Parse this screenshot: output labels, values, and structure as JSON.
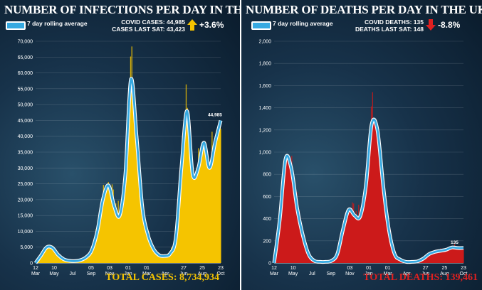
{
  "left": {
    "title": "NUMBER OF INFECTIONS PER DAY IN THE UK",
    "legend_label": "7 day rolling average",
    "stat_line1": "COVID CASES: 44,985",
    "stat_line2": "CASES LAST SAT: 43,423",
    "change": "+3.6%",
    "change_direction": "up",
    "total": "TOTAL CASES: 8,734,934",
    "end_label": "44,985"
  },
  "right": {
    "title": "NUMBER OF DEATHS PER DAY IN THE UK",
    "legend_label": "7 day rolling average",
    "stat_line1": "COVID DEATHS: 135",
    "stat_line2": "DEATHS LAST SAT: 148",
    "change": "-8.8%",
    "change_direction": "down",
    "total": "TOTAL DEATHS: 139,461",
    "end_label": "135"
  },
  "colors": {
    "cases_fill": "#f5c400",
    "deaths_fill": "#cc1a1a",
    "rolling_line": "#36a9e1",
    "rolling_outline": "#ffffff",
    "up_arrow": "#f5c400",
    "down_arrow": "#e02020",
    "cases_total_text": "#f5c400",
    "deaths_total_text": "#e02020"
  },
  "chart_data": [
    {
      "type": "area",
      "series": [
        {
          "values": [
            0,
            2500,
            5000,
            4800,
            2600,
            1200,
            700,
            600,
            900,
            1800,
            4000,
            10000,
            20000,
            24500,
            18000,
            15000,
            28000,
            58000,
            40000,
            18000,
            9000,
            4500,
            2500,
            2200,
            3000,
            8000,
            30000,
            48000,
            28000,
            30000,
            38000,
            30000,
            38000,
            44985
          ]
        },
        {
          "values": [
            0,
            2500,
            5000,
            4800,
            2600,
            1200,
            700,
            600,
            900,
            1800,
            4000,
            10000,
            20000,
            24500,
            18000,
            15000,
            28000,
            58000,
            40000,
            18000,
            9000,
            4500,
            2500,
            2200,
            3000,
            8000,
            30000,
            48000,
            28000,
            30000,
            38000,
            30000,
            38000,
            44985
          ]
        }
      ],
      "ylim": [
        0,
        70000
      ],
      "yticks": [
        "0",
        "5,000",
        "10,000",
        "15,000",
        "20,000",
        "25,000",
        "30,000",
        "35,000",
        "40,000",
        "45,000",
        "50,000",
        "55,000",
        "60,000",
        "65,000",
        "70,000"
      ],
      "xticks": [
        {
          "day": "12",
          "month": "Mar"
        },
        {
          "day": "10",
          "month": "May"
        },
        {
          "day": "",
          "month": "Jul"
        },
        {
          "day": "05",
          "month": "Sep"
        },
        {
          "day": "03",
          "month": "Nov"
        },
        {
          "day": "01",
          "month": "Jan"
        },
        {
          "day": "01",
          "month": "Mar"
        },
        {
          "day": "",
          "month": "Apr"
        },
        {
          "day": "27",
          "month": "Jun"
        },
        {
          "day": "25",
          "month": "Aug"
        },
        {
          "day": "23",
          "month": "Oct"
        }
      ]
    },
    {
      "type": "area",
      "series": [
        {
          "values": [
            0,
            400,
            940,
            850,
            500,
            250,
            80,
            20,
            10,
            10,
            20,
            80,
            300,
            480,
            430,
            420,
            700,
            1250,
            1200,
            700,
            300,
            80,
            30,
            10,
            10,
            15,
            40,
            80,
            100,
            110,
            120,
            140,
            135,
            135
          ]
        },
        {
          "values": [
            0,
            400,
            940,
            850,
            500,
            250,
            80,
            20,
            10,
            10,
            20,
            80,
            300,
            480,
            430,
            420,
            700,
            1250,
            1200,
            700,
            300,
            80,
            30,
            10,
            10,
            15,
            40,
            80,
            100,
            110,
            120,
            140,
            135,
            135
          ]
        }
      ],
      "ylim": [
        0,
        2000
      ],
      "yticks": [
        "0",
        "200",
        "400",
        "600",
        "800",
        "1,000",
        "1,200",
        "1,400",
        "1,600",
        "1,800",
        "2,000"
      ],
      "xticks": [
        {
          "day": "12",
          "month": "Mar"
        },
        {
          "day": "10",
          "month": "May"
        },
        {
          "day": "",
          "month": "Jul"
        },
        {
          "day": "",
          "month": "Sep"
        },
        {
          "day": "03",
          "month": "Nov"
        },
        {
          "day": "01",
          "month": "Jan"
        },
        {
          "day": "01",
          "month": "Mar"
        },
        {
          "day": "",
          "month": "Apr"
        },
        {
          "day": "27",
          "month": "Jun"
        },
        {
          "day": "25",
          "month": "Aug"
        },
        {
          "day": "23",
          "month": "Oct"
        }
      ]
    }
  ]
}
